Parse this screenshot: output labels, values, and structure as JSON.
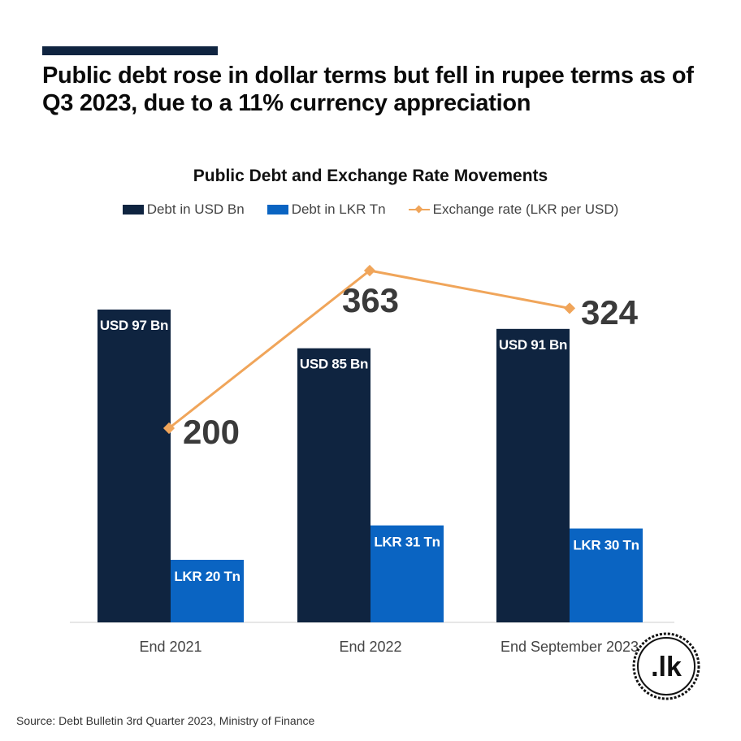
{
  "headline": "Public debt rose in dollar terms but fell in rupee terms as of Q3 2023, due to a 11% currency appreciation",
  "source": "Source: Debt Bulletin 3rd Quarter 2023, Ministry of Finance",
  "logo_text": ".lk",
  "colors": {
    "usd": "#0f2440",
    "lkr": "#0a64c2",
    "rate": "#f0a55a",
    "rate_label": "#3a3a3a"
  },
  "chart_data": {
    "type": "bar",
    "title": "Public Debt and Exchange Rate Movements",
    "categories": [
      "End 2021",
      "End 2022",
      "End September 2023"
    ],
    "series": [
      {
        "name": "Debt in USD Bn",
        "values": [
          97,
          85,
          91
        ],
        "labels": [
          "USD 97 Bn",
          "USD 85 Bn",
          "USD 91 Bn"
        ]
      },
      {
        "name": "Debt in LKR Tn",
        "values": [
          20,
          31,
          30
        ],
        "labels": [
          "LKR 20 Tn",
          "LKR 31 Tn",
          "LKR 30 Tn"
        ]
      },
      {
        "name": "Exchange rate (LKR per USD)",
        "type": "line",
        "values": [
          200,
          363,
          324
        ],
        "labels": [
          "200",
          "363",
          "324"
        ]
      }
    ],
    "legend": "top-center",
    "grid": false
  }
}
